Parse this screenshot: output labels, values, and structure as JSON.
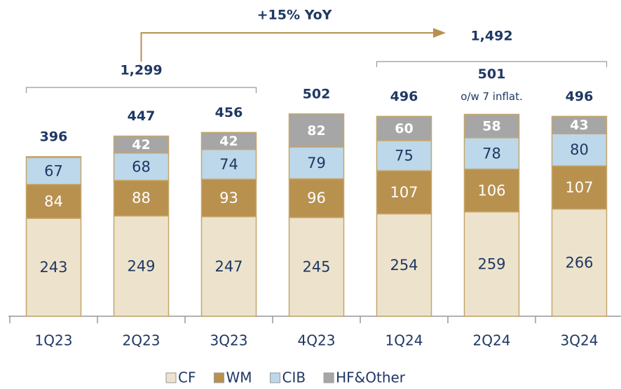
{
  "chart_data": {
    "type": "stacked_bar",
    "categories": [
      "1Q23",
      "2Q23",
      "3Q23",
      "4Q23",
      "1Q24",
      "2Q24",
      "3Q24"
    ],
    "series": [
      {
        "name": "CF",
        "color": "#ede3cc",
        "values": [
          243,
          249,
          247,
          245,
          254,
          259,
          266
        ]
      },
      {
        "name": "WM",
        "color": "#b8914f",
        "values": [
          84,
          88,
          93,
          96,
          107,
          106,
          107
        ]
      },
      {
        "name": "CIB",
        "color": "#bcd8ea",
        "values": [
          67,
          68,
          74,
          79,
          75,
          78,
          80
        ]
      },
      {
        "name": "HF&Other",
        "color": "#a6a6a6",
        "values": [
          2,
          42,
          42,
          82,
          60,
          58,
          43
        ]
      }
    ],
    "totals": [
      396,
      447,
      456,
      502,
      496,
      501,
      496
    ],
    "total_note": "o/w 7 inflat.",
    "group_totals": [
      {
        "value": 1299,
        "label": "1,299"
      },
      {
        "value": 1492,
        "label": "1,492"
      }
    ],
    "growth_label": "+15% YoY",
    "legend": "bottom"
  }
}
